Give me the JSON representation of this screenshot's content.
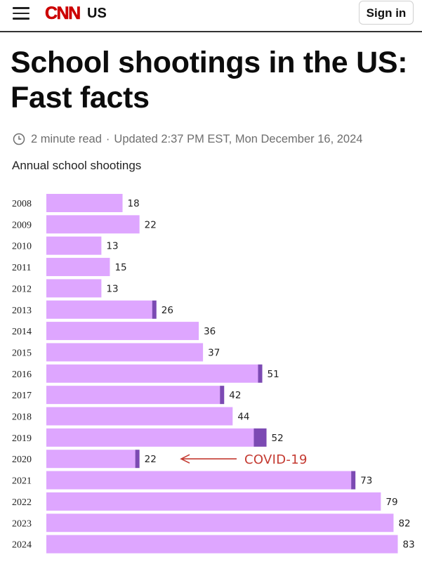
{
  "header": {
    "logo_text": "CNN",
    "edition": "US",
    "signin_label": "Sign in",
    "brand_color": "#cc0000"
  },
  "article": {
    "title": "School shootings in the US: Fast facts",
    "read_time": "2 minute read",
    "updated": "Updated 2:37 PM EST, Mon December 16, 2024"
  },
  "chart_data": {
    "type": "bar",
    "orientation": "horizontal",
    "title": "Annual school shootings",
    "categories": [
      "2008",
      "2009",
      "2010",
      "2011",
      "2012",
      "2013",
      "2014",
      "2015",
      "2016",
      "2017",
      "2018",
      "2019",
      "2020",
      "2021",
      "2022",
      "2023",
      "2024"
    ],
    "values": [
      18,
      22,
      13,
      15,
      13,
      26,
      36,
      37,
      51,
      42,
      44,
      52,
      22,
      73,
      79,
      82,
      83
    ],
    "highlight_portion": [
      0,
      0,
      0,
      0,
      0,
      1,
      0,
      0,
      1,
      1,
      0,
      3,
      1,
      1,
      0,
      0,
      0
    ],
    "bar_color": "#dea6ff",
    "highlight_color": "#7c4ab3",
    "annotation": {
      "text": "COVID-19",
      "category": "2020",
      "color": "#c43a31"
    }
  }
}
